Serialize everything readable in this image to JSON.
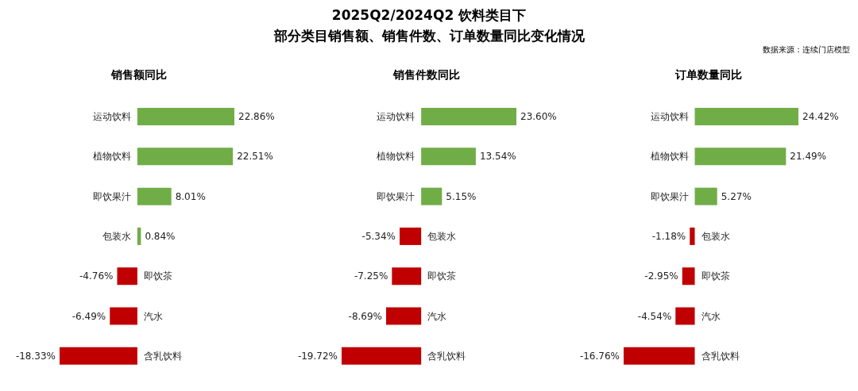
{
  "chart_data": [
    {
      "type": "bar",
      "orientation": "horizontal",
      "title": "销售额同比",
      "annotations": [
        "2025Q2/2024Q2 饮料类目下",
        "部分类目销售额、销售件数、订单数量同比变化情况",
        "数据来源：连续门店模型"
      ],
      "categories": [
        "运动饮料",
        "植物饮料",
        "即饮果汁",
        "包装水",
        "即饮茶",
        "汽水",
        "含乳饮料"
      ],
      "values": [
        22.86,
        22.51,
        8.01,
        0.84,
        -4.76,
        -6.49,
        -18.33
      ],
      "value_labels": [
        "22.86%",
        "22.51%",
        "8.01%",
        "0.84%",
        "-4.76%",
        "-6.49%",
        "-18.33%"
      ],
      "colors": [
        "#70ad47",
        "#70ad47",
        "#70ad47",
        "#70ad47",
        "#c00000",
        "#c00000",
        "#c00000"
      ]
    },
    {
      "type": "bar",
      "orientation": "horizontal",
      "title": "销售件数同比",
      "categories": [
        "运动饮料",
        "植物饮料",
        "即饮果汁",
        "包装水",
        "即饮茶",
        "汽水",
        "含乳饮料"
      ],
      "values": [
        23.6,
        13.54,
        5.15,
        -5.34,
        -7.25,
        -8.69,
        -19.72
      ],
      "value_labels": [
        "23.60%",
        "13.54%",
        "5.15%",
        "-5.34%",
        "-7.25%",
        "-8.69%",
        "-19.72%"
      ],
      "colors": [
        "#70ad47",
        "#70ad47",
        "#70ad47",
        "#c00000",
        "#c00000",
        "#c00000",
        "#c00000"
      ]
    },
    {
      "type": "bar",
      "orientation": "horizontal",
      "title": "订单数量同比",
      "categories": [
        "运动饮料",
        "植物饮料",
        "即饮果汁",
        "包装水",
        "即饮茶",
        "汽水",
        "含乳饮料"
      ],
      "values": [
        24.42,
        21.49,
        5.27,
        -1.18,
        -2.95,
        -4.54,
        -16.76
      ],
      "value_labels": [
        "24.42%",
        "21.49%",
        "5.27%",
        "-1.18%",
        "-2.95%",
        "-4.54%",
        "-16.76%"
      ],
      "colors": [
        "#70ad47",
        "#70ad47",
        "#70ad47",
        "#c00000",
        "#c00000",
        "#c00000",
        "#c00000"
      ]
    }
  ]
}
